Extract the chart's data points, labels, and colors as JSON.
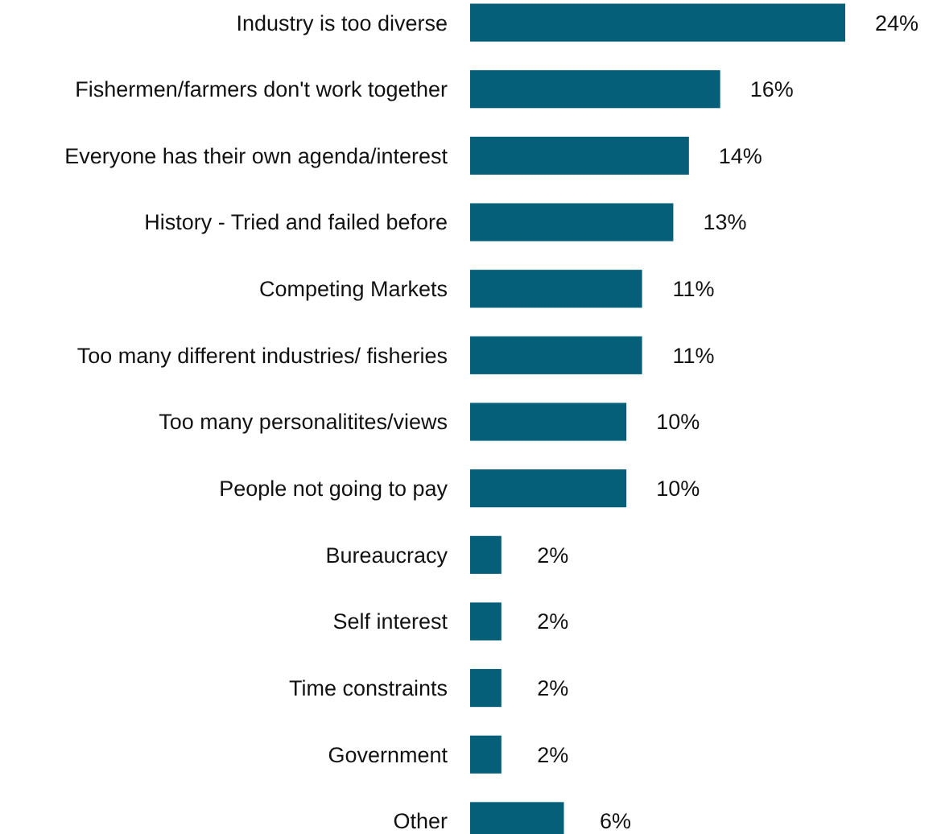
{
  "chart_data": {
    "type": "bar",
    "orientation": "horizontal",
    "color": "#055f78",
    "categories": [
      "Industry is too diverse",
      "Fishermen/farmers don't work together",
      "Everyone has their own agenda/interest",
      "History - Tried and failed before",
      "Competing Markets",
      "Too many different industries/ fisheries",
      "Too many personalitites/views",
      "People not going to pay",
      "Bureaucracy",
      "Self interest",
      "Time constraints",
      "Government",
      "Other"
    ],
    "values": [
      24,
      16,
      14,
      13,
      11,
      11,
      10,
      10,
      2,
      2,
      2,
      2,
      6
    ],
    "value_labels": [
      "24%",
      "16%",
      "14%",
      "13%",
      "11%",
      "11%",
      "10%",
      "10%",
      "2%",
      "2%",
      "2%",
      "2%",
      "6%"
    ]
  }
}
